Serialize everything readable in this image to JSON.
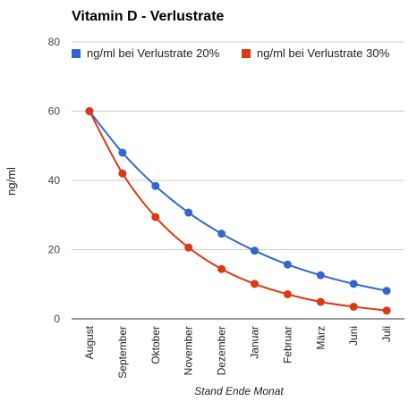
{
  "chart_data": {
    "type": "line",
    "title": "Vitamin D - Verlustrate",
    "xlabel": "Stand Ende Monat",
    "ylabel": "ng/ml",
    "ylim": [
      0,
      80
    ],
    "yticks": [
      0,
      20,
      40,
      60,
      80
    ],
    "grid": true,
    "legend_position": "top",
    "smooth": true,
    "categories": [
      "August",
      "September",
      "Oktober",
      "November",
      "Dezember",
      "Januar",
      "Februar",
      "März",
      "Juni",
      "Juli"
    ],
    "series": [
      {
        "name": "ng/ml bei Verlustrate 20%",
        "color": "#3366cc",
        "values": [
          60,
          48,
          38.4,
          30.7,
          24.6,
          19.7,
          15.7,
          12.6,
          10.1,
          8.1
        ]
      },
      {
        "name": "ng/ml bei Verlustrate 30%",
        "color": "#dc3912",
        "values": [
          60,
          42,
          29.4,
          20.6,
          14.4,
          10.1,
          7.1,
          4.9,
          3.5,
          2.4
        ]
      }
    ]
  }
}
